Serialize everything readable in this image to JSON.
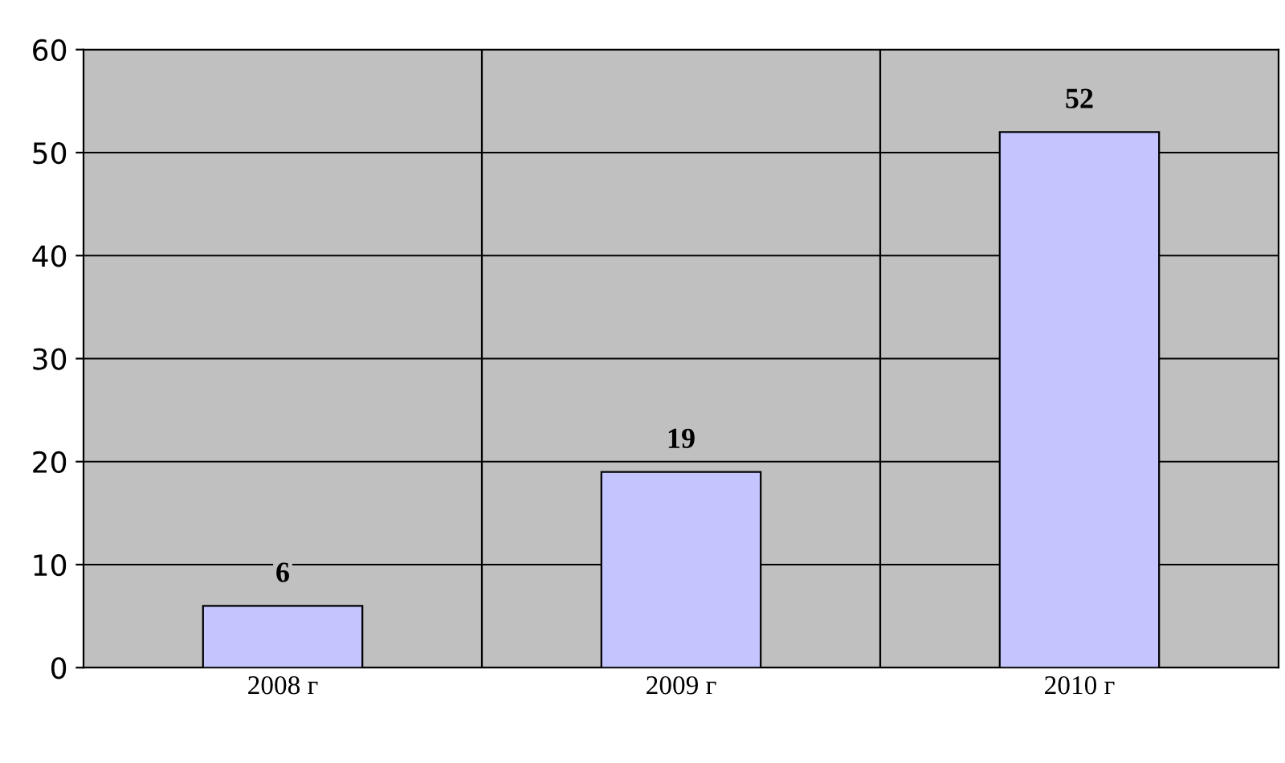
{
  "chart_data": {
    "type": "bar",
    "categories": [
      "2008 г",
      "2009 г",
      "2010 г"
    ],
    "values": [
      6,
      19,
      52
    ],
    "color": "#c4c4ff",
    "ylim": [
      0,
      60
    ],
    "yticks": [
      0,
      10,
      20,
      30,
      40,
      50,
      60
    ],
    "grid": true,
    "data_labels": true
  }
}
